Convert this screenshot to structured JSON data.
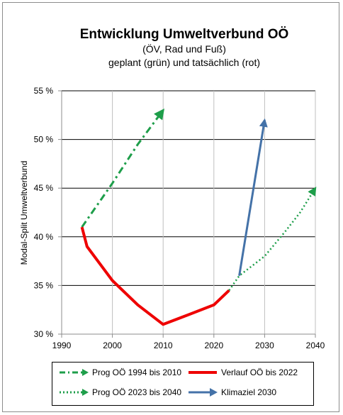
{
  "chart_data": {
    "type": "line",
    "title": "Entwicklung Umweltverbund OÖ",
    "subtitle1": "(ÖV, Rad und Fuß)",
    "subtitle2": "geplant (grün) und tatsächlich (rot)",
    "ylabel": "Modal-Split Umweltverbund",
    "xlabel": "",
    "xlim": [
      1990,
      2040
    ],
    "ylim": [
      30,
      55
    ],
    "xticks": [
      "1990",
      "2000",
      "2010",
      "2020",
      "2030",
      "2040"
    ],
    "xtick_values": [
      1990,
      2000,
      2010,
      2020,
      2030,
      2040
    ],
    "yticks": [
      "30 %",
      "35 %",
      "40 %",
      "45 %",
      "50 %",
      "55 %"
    ],
    "ytick_values": [
      30,
      35,
      40,
      45,
      50,
      55
    ],
    "grid": {
      "horizontal": true,
      "vertical": true
    },
    "legend_position": "bottom",
    "series": [
      {
        "name": "Prog OÖ 1994 bis 2010",
        "color": "#1e9e4a",
        "style": "dashdot-arrow",
        "x": [
          1994,
          2000,
          2005,
          2010
        ],
        "y": [
          41,
          45.5,
          49.5,
          53
        ]
      },
      {
        "name": "Verlauf OÖ bis 2022",
        "color": "#ee0000",
        "style": "solid",
        "x": [
          1994,
          1995,
          2000,
          2005,
          2010,
          2015,
          2020,
          2023
        ],
        "y": [
          41,
          39,
          35.5,
          33,
          31,
          32,
          33,
          34.5
        ]
      },
      {
        "name": "Prog OÖ 2023 bis 2040",
        "color": "#1e9e4a",
        "style": "dotted-arrow",
        "x": [
          2023,
          2025,
          2030,
          2034,
          2037,
          2040
        ],
        "y": [
          34.5,
          36,
          38,
          40.5,
          42.5,
          45
        ]
      },
      {
        "name": "Klimaziel 2030",
        "color": "#4472a8",
        "style": "solid-arrow",
        "x": [
          2025,
          2030
        ],
        "y": [
          36,
          52
        ]
      }
    ]
  }
}
